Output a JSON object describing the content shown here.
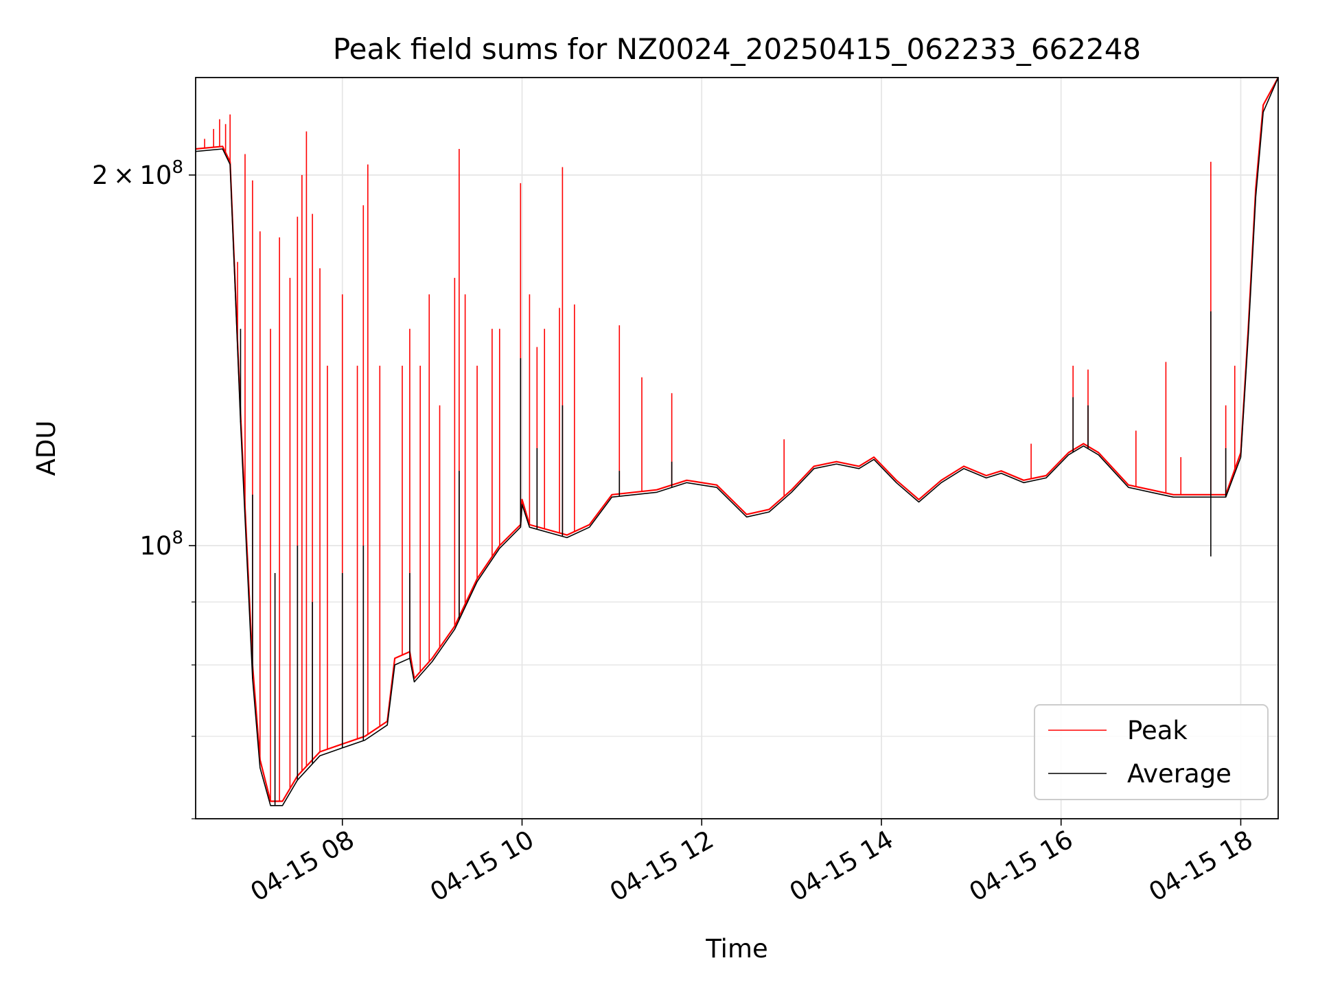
{
  "chart_data": {
    "type": "line",
    "title": "Peak field sums for NZ0024_20250415_062233_662248",
    "xlabel": "Time",
    "ylabel": "ADU",
    "y_scale": "log",
    "grid": true,
    "legend_position": "lower right",
    "xlim": [
      "2025-04-15 06:22",
      "2025-04-15 18:25"
    ],
    "ylim": [
      60000000,
      240000000
    ],
    "x_ticks": [
      {
        "value": "2025-04-15 08:00",
        "label": "04-15 08"
      },
      {
        "value": "2025-04-15 10:00",
        "label": "04-15 10"
      },
      {
        "value": "2025-04-15 12:00",
        "label": "04-15 12"
      },
      {
        "value": "2025-04-15 14:00",
        "label": "04-15 14"
      },
      {
        "value": "2025-04-15 16:00",
        "label": "04-15 16"
      },
      {
        "value": "2025-04-15 18:00",
        "label": "04-15 18"
      }
    ],
    "y_ticks": [
      {
        "value": 100000000,
        "mantissa": "",
        "exponent": "8",
        "base": "10"
      },
      {
        "value": 200000000,
        "mantissa": "2",
        "times": "×",
        "exponent": "8",
        "base": "10"
      }
    ],
    "y_minor_ticks": [
      60000000,
      70000000,
      80000000,
      90000000
    ],
    "series": [
      {
        "name": "Peak",
        "color": "#ff0000",
        "points": [
          [
            "2025-04-15 06:22",
            210000000
          ],
          [
            "2025-04-15 06:40",
            211000000
          ],
          [
            "2025-04-15 06:45",
            205000000
          ],
          [
            "2025-04-15 06:52",
            128000000
          ],
          [
            "2025-04-15 07:00",
            80000000
          ],
          [
            "2025-04-15 07:05",
            67000000
          ],
          [
            "2025-04-15 07:12",
            62000000
          ],
          [
            "2025-04-15 07:20",
            62000000
          ],
          [
            "2025-04-15 07:30",
            65000000
          ],
          [
            "2025-04-15 07:45",
            68000000
          ],
          [
            "2025-04-15 08:00",
            69000000
          ],
          [
            "2025-04-15 08:15",
            70000000
          ],
          [
            "2025-04-15 08:30",
            72000000
          ],
          [
            "2025-04-15 08:35",
            81000000
          ],
          [
            "2025-04-15 08:45",
            82000000
          ],
          [
            "2025-04-15 08:48",
            78000000
          ],
          [
            "2025-04-15 09:00",
            81000000
          ],
          [
            "2025-04-15 09:15",
            86000000
          ],
          [
            "2025-04-15 09:30",
            94000000
          ],
          [
            "2025-04-15 09:45",
            100000000
          ],
          [
            "2025-04-15 09:59",
            104000000
          ],
          [
            "2025-04-15 10:00",
            109000000
          ],
          [
            "2025-04-15 10:05",
            104000000
          ],
          [
            "2025-04-15 10:30",
            102000000
          ],
          [
            "2025-04-15 10:45",
            104000000
          ],
          [
            "2025-04-15 11:00",
            110000000
          ],
          [
            "2025-04-15 11:30",
            111000000
          ],
          [
            "2025-04-15 11:50",
            113000000
          ],
          [
            "2025-04-15 12:10",
            112000000
          ],
          [
            "2025-04-15 12:30",
            106000000
          ],
          [
            "2025-04-15 12:45",
            107000000
          ],
          [
            "2025-04-15 13:00",
            111000000
          ],
          [
            "2025-04-15 13:15",
            116000000
          ],
          [
            "2025-04-15 13:30",
            117000000
          ],
          [
            "2025-04-15 13:45",
            116000000
          ],
          [
            "2025-04-15 13:55",
            118000000
          ],
          [
            "2025-04-15 14:10",
            113000000
          ],
          [
            "2025-04-15 14:25",
            109000000
          ],
          [
            "2025-04-15 14:40",
            113000000
          ],
          [
            "2025-04-15 14:55",
            116000000
          ],
          [
            "2025-04-15 15:10",
            114000000
          ],
          [
            "2025-04-15 15:20",
            115000000
          ],
          [
            "2025-04-15 15:35",
            113000000
          ],
          [
            "2025-04-15 15:50",
            114000000
          ],
          [
            "2025-04-15 16:05",
            119000000
          ],
          [
            "2025-04-15 16:15",
            121000000
          ],
          [
            "2025-04-15 16:25",
            119000000
          ],
          [
            "2025-04-15 16:45",
            112000000
          ],
          [
            "2025-04-15 17:00",
            111000000
          ],
          [
            "2025-04-15 17:15",
            110000000
          ],
          [
            "2025-04-15 17:30",
            110000000
          ],
          [
            "2025-04-15 17:50",
            110000000
          ],
          [
            "2025-04-15 18:00",
            119000000
          ],
          [
            "2025-04-15 18:05",
            150000000
          ],
          [
            "2025-04-15 18:10",
            195000000
          ],
          [
            "2025-04-15 18:15",
            228000000
          ],
          [
            "2025-04-15 18:25",
            240000000
          ]
        ],
        "spikes": [
          [
            "2025-04-15 06:28",
            214000000
          ],
          [
            "2025-04-15 06:34",
            218000000
          ],
          [
            "2025-04-15 06:38",
            222000000
          ],
          [
            "2025-04-15 06:42",
            220000000
          ],
          [
            "2025-04-15 06:45",
            224000000
          ],
          [
            "2025-04-15 06:50",
            170000000
          ],
          [
            "2025-04-15 06:55",
            208000000
          ],
          [
            "2025-04-15 07:00",
            198000000
          ],
          [
            "2025-04-15 07:05",
            180000000
          ],
          [
            "2025-04-15 07:12",
            150000000
          ],
          [
            "2025-04-15 07:18",
            178000000
          ],
          [
            "2025-04-15 07:25",
            165000000
          ],
          [
            "2025-04-15 07:30",
            185000000
          ],
          [
            "2025-04-15 07:33",
            200000000
          ],
          [
            "2025-04-15 07:36",
            217000000
          ],
          [
            "2025-04-15 07:40",
            186000000
          ],
          [
            "2025-04-15 07:45",
            168000000
          ],
          [
            "2025-04-15 07:50",
            140000000
          ],
          [
            "2025-04-15 08:00",
            160000000
          ],
          [
            "2025-04-15 08:10",
            140000000
          ],
          [
            "2025-04-15 08:14",
            189000000
          ],
          [
            "2025-04-15 08:17",
            204000000
          ],
          [
            "2025-04-15 08:25",
            140000000
          ],
          [
            "2025-04-15 08:40",
            140000000
          ],
          [
            "2025-04-15 08:45",
            150000000
          ],
          [
            "2025-04-15 08:52",
            140000000
          ],
          [
            "2025-04-15 08:58",
            160000000
          ],
          [
            "2025-04-15 09:05",
            130000000
          ],
          [
            "2025-04-15 09:15",
            165000000
          ],
          [
            "2025-04-15 09:18",
            210000000
          ],
          [
            "2025-04-15 09:22",
            160000000
          ],
          [
            "2025-04-15 09:30",
            140000000
          ],
          [
            "2025-04-15 09:40",
            150000000
          ],
          [
            "2025-04-15 09:45",
            150000000
          ],
          [
            "2025-04-15 09:59",
            197000000
          ],
          [
            "2025-04-15 10:05",
            160000000
          ],
          [
            "2025-04-15 10:10",
            145000000
          ],
          [
            "2025-04-15 10:15",
            150000000
          ],
          [
            "2025-04-15 10:25",
            156000000
          ],
          [
            "2025-04-15 10:27",
            203000000
          ],
          [
            "2025-04-15 10:35",
            157000000
          ],
          [
            "2025-04-15 11:05",
            151000000
          ],
          [
            "2025-04-15 11:20",
            137000000
          ],
          [
            "2025-04-15 11:40",
            133000000
          ],
          [
            "2025-04-15 12:55",
            122000000
          ],
          [
            "2025-04-15 15:40",
            121000000
          ],
          [
            "2025-04-15 16:08",
            140000000
          ],
          [
            "2025-04-15 16:18",
            139000000
          ],
          [
            "2025-04-15 16:50",
            124000000
          ],
          [
            "2025-04-15 17:10",
            141000000
          ],
          [
            "2025-04-15 17:20",
            118000000
          ],
          [
            "2025-04-15 17:40",
            205000000
          ],
          [
            "2025-04-15 17:50",
            130000000
          ],
          [
            "2025-04-15 17:56",
            140000000
          ]
        ]
      },
      {
        "name": "Average",
        "color": "#000000",
        "points": [
          [
            "2025-04-15 06:22",
            209000000
          ],
          [
            "2025-04-15 06:40",
            210000000
          ],
          [
            "2025-04-15 06:45",
            204000000
          ],
          [
            "2025-04-15 06:52",
            126000000
          ],
          [
            "2025-04-15 07:00",
            78000000
          ],
          [
            "2025-04-15 07:05",
            66000000
          ],
          [
            "2025-04-15 07:12",
            61500000
          ],
          [
            "2025-04-15 07:20",
            61500000
          ],
          [
            "2025-04-15 07:30",
            64500000
          ],
          [
            "2025-04-15 07:45",
            67500000
          ],
          [
            "2025-04-15 08:00",
            68500000
          ],
          [
            "2025-04-15 08:15",
            69500000
          ],
          [
            "2025-04-15 08:30",
            71500000
          ],
          [
            "2025-04-15 08:35",
            80000000
          ],
          [
            "2025-04-15 08:45",
            81000000
          ],
          [
            "2025-04-15 08:48",
            77500000
          ],
          [
            "2025-04-15 09:00",
            80500000
          ],
          [
            "2025-04-15 09:15",
            85500000
          ],
          [
            "2025-04-15 09:30",
            93500000
          ],
          [
            "2025-04-15 09:45",
            99500000
          ],
          [
            "2025-04-15 09:59",
            103500000
          ],
          [
            "2025-04-15 10:00",
            108000000
          ],
          [
            "2025-04-15 10:05",
            103500000
          ],
          [
            "2025-04-15 10:30",
            101500000
          ],
          [
            "2025-04-15 10:45",
            103500000
          ],
          [
            "2025-04-15 11:00",
            109500000
          ],
          [
            "2025-04-15 11:30",
            110500000
          ],
          [
            "2025-04-15 11:50",
            112500000
          ],
          [
            "2025-04-15 12:10",
            111500000
          ],
          [
            "2025-04-15 12:30",
            105500000
          ],
          [
            "2025-04-15 12:45",
            106500000
          ],
          [
            "2025-04-15 13:00",
            110500000
          ],
          [
            "2025-04-15 13:15",
            115500000
          ],
          [
            "2025-04-15 13:30",
            116500000
          ],
          [
            "2025-04-15 13:45",
            115500000
          ],
          [
            "2025-04-15 13:55",
            117500000
          ],
          [
            "2025-04-15 14:10",
            112500000
          ],
          [
            "2025-04-15 14:25",
            108500000
          ],
          [
            "2025-04-15 14:40",
            112500000
          ],
          [
            "2025-04-15 14:55",
            115500000
          ],
          [
            "2025-04-15 15:10",
            113500000
          ],
          [
            "2025-04-15 15:20",
            114500000
          ],
          [
            "2025-04-15 15:35",
            112500000
          ],
          [
            "2025-04-15 15:50",
            113500000
          ],
          [
            "2025-04-15 16:05",
            118500000
          ],
          [
            "2025-04-15 16:15",
            120500000
          ],
          [
            "2025-04-15 16:25",
            118500000
          ],
          [
            "2025-04-15 16:45",
            111500000
          ],
          [
            "2025-04-15 17:00",
            110500000
          ],
          [
            "2025-04-15 17:15",
            109500000
          ],
          [
            "2025-04-15 17:30",
            109500000
          ],
          [
            "2025-04-15 17:50",
            109500000
          ],
          [
            "2025-04-15 18:00",
            118000000
          ],
          [
            "2025-04-15 18:05",
            148000000
          ],
          [
            "2025-04-15 18:10",
            192000000
          ],
          [
            "2025-04-15 18:15",
            225000000
          ],
          [
            "2025-04-15 18:25",
            240000000
          ]
        ],
        "spikes": [
          [
            "2025-04-15 06:52",
            150000000
          ],
          [
            "2025-04-15 07:00",
            110000000
          ],
          [
            "2025-04-15 07:15",
            95000000
          ],
          [
            "2025-04-15 07:30",
            100000000
          ],
          [
            "2025-04-15 07:40",
            90000000
          ],
          [
            "2025-04-15 08:00",
            95000000
          ],
          [
            "2025-04-15 08:14",
            100000000
          ],
          [
            "2025-04-15 08:45",
            95000000
          ],
          [
            "2025-04-15 09:18",
            115000000
          ],
          [
            "2025-04-15 09:59",
            142000000
          ],
          [
            "2025-04-15 10:10",
            120000000
          ],
          [
            "2025-04-15 10:27",
            130000000
          ],
          [
            "2025-04-15 11:05",
            115000000
          ],
          [
            "2025-04-15 11:40",
            117000000
          ],
          [
            "2025-04-15 16:08",
            132000000
          ],
          [
            "2025-04-15 16:18",
            130000000
          ],
          [
            "2025-04-15 17:40",
            155000000
          ],
          [
            "2025-04-15 17:40",
            98000000
          ],
          [
            "2025-04-15 17:50",
            120000000
          ]
        ]
      }
    ]
  }
}
